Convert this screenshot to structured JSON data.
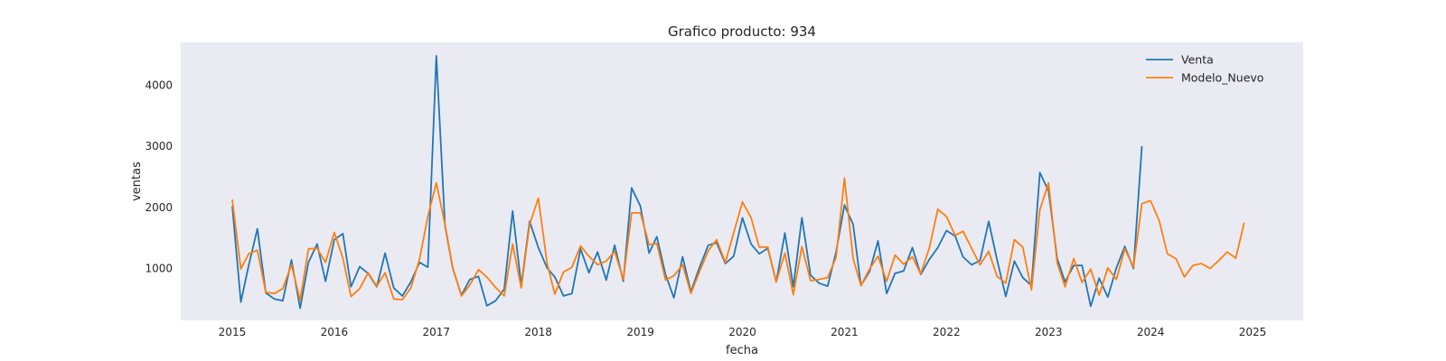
{
  "chart_data": {
    "type": "line",
    "title": "Grafico producto: 934",
    "xlabel": "fecha",
    "ylabel": "ventas",
    "xlim": [
      "2014-07-01",
      "2025-07-01"
    ],
    "ylim": [
      150,
      4700
    ],
    "x_ticks": [
      "2015",
      "2016",
      "2017",
      "2018",
      "2019",
      "2020",
      "2021",
      "2022",
      "2023",
      "2024",
      "2025"
    ],
    "y_ticks": [
      1000,
      2000,
      3000,
      4000
    ],
    "grid": false,
    "legend": "top-right",
    "colors": {
      "background": "#eaeaf2",
      "Venta": "#1f77b4",
      "Modelo_Nuevo": "#ff7f0e"
    },
    "x_start": "2015-01",
    "x_frequency": "monthly",
    "series": [
      {
        "name": "Venta",
        "values": [
          2020,
          450,
          1050,
          1650,
          600,
          500,
          470,
          1140,
          350,
          1100,
          1400,
          790,
          1470,
          1570,
          700,
          1030,
          920,
          700,
          1250,
          680,
          550,
          780,
          1100,
          1020,
          4480,
          1700,
          1000,
          560,
          820,
          870,
          390,
          470,
          660,
          1940,
          720,
          1770,
          1340,
          1010,
          860,
          550,
          590,
          1320,
          930,
          1270,
          810,
          1380,
          790,
          2320,
          2020,
          1250,
          1520,
          900,
          520,
          1190,
          620,
          1020,
          1380,
          1420,
          1080,
          1200,
          1830,
          1400,
          1240,
          1330,
          780,
          1580,
          700,
          1830,
          890,
          760,
          710,
          1270,
          2040,
          1720,
          720,
          950,
          1450,
          590,
          920,
          960,
          1340,
          900,
          1150,
          1340,
          1620,
          1530,
          1190,
          1060,
          1130,
          1770,
          1140,
          540,
          1120,
          850,
          720,
          2570,
          2270,
          1160,
          780,
          1050,
          1050,
          380,
          840,
          530,
          1010,
          1360,
          1000,
          3000
        ]
      },
      {
        "name": "Modelo_Nuevo",
        "values": [
          2130,
          990,
          1240,
          1300,
          610,
          590,
          670,
          1060,
          480,
          1320,
          1330,
          1100,
          1590,
          1170,
          540,
          670,
          930,
          710,
          930,
          500,
          490,
          680,
          1150,
          1850,
          2400,
          1720,
          1010,
          550,
          730,
          980,
          860,
          690,
          550,
          1400,
          680,
          1720,
          2150,
          1090,
          580,
          940,
          1020,
          1370,
          1200,
          1060,
          1120,
          1280,
          820,
          1910,
          1910,
          1390,
          1410,
          810,
          880,
          1060,
          590,
          950,
          1290,
          1470,
          1100,
          1580,
          2090,
          1830,
          1350,
          1350,
          780,
          1250,
          570,
          1360,
          800,
          820,
          850,
          1180,
          2480,
          1160,
          720,
          990,
          1200,
          790,
          1220,
          1070,
          1190,
          910,
          1340,
          1970,
          1850,
          1540,
          1610,
          1330,
          1060,
          1280,
          870,
          760,
          1470,
          1350,
          650,
          1960,
          2400,
          1090,
          700,
          1160,
          770,
          990,
          560,
          1010,
          820,
          1320,
          1020,
          2060,
          2110,
          1780,
          1240,
          1160,
          860,
          1050,
          1080,
          1000,
          1130,
          1270,
          1170,
          1750
        ]
      }
    ]
  }
}
